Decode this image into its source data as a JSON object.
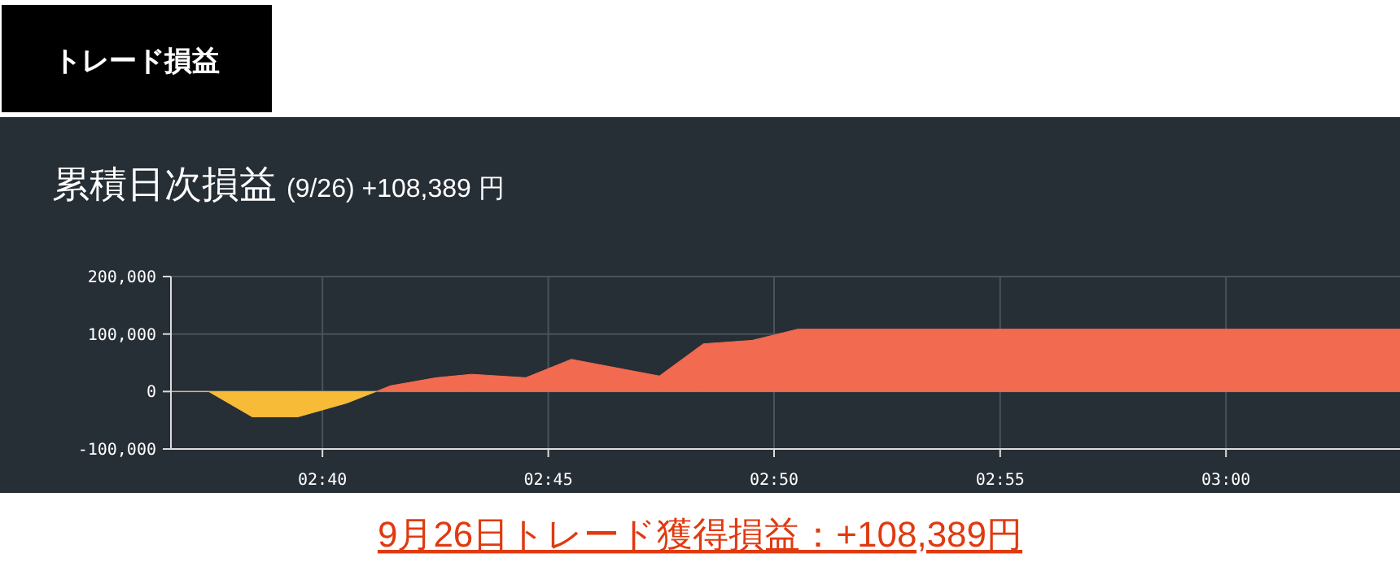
{
  "chart_data": {
    "type": "area",
    "title": "累積日次損益",
    "subtitle": "(9/26) +108,389 円",
    "annotations": [
      "トレード損益",
      "9月26日トレード獲得損益：+108,389円"
    ],
    "series": [
      {
        "color": "#f7bb38",
        "x": [
          2.6108,
          2.6247,
          2.6408,
          2.6577,
          2.6757,
          2.6865
        ],
        "values": [
          0,
          0,
          -44000,
          -44000,
          -20000,
          0
        ]
      },
      {
        "color": "#f26b50",
        "x": [
          2.6865,
          2.6918,
          2.7087,
          2.7218,
          2.7417,
          2.7585,
          2.791,
          2.8072,
          2.8252,
          2.842,
          3.0642
        ],
        "values": [
          0,
          10000,
          24000,
          30000,
          24000,
          56000,
          27000,
          83000,
          89000,
          108389,
          108389
        ]
      }
    ],
    "xlim": [
      2.6108,
      3.0642
    ],
    "xticks": [
      {
        "value": 2.6667,
        "label": "02:40"
      },
      {
        "value": 2.75,
        "label": "02:45"
      },
      {
        "value": 2.8333,
        "label": "02:50"
      },
      {
        "value": 2.9167,
        "label": "02:55"
      },
      {
        "value": 3,
        "label": "03:00"
      }
    ],
    "ylim": [
      -100000,
      200000
    ],
    "yticks": [
      {
        "value": -100000,
        "label": "-100,000"
      },
      {
        "value": 0,
        "label": "0"
      },
      {
        "value": 100000,
        "label": "100,000"
      },
      {
        "value": 200000,
        "label": "200,000"
      }
    ],
    "grid": true
  }
}
